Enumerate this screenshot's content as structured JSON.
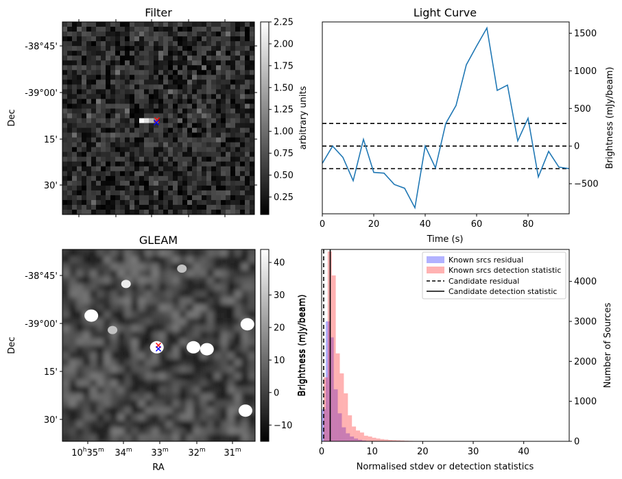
{
  "chart_data": [
    {
      "id": "filter",
      "type": "heatmap",
      "title": "Filter",
      "xlabel": "",
      "ylabel": "Dec",
      "yticks": [
        "-38°45'",
        "-39°00'",
        "15'",
        "30'"
      ],
      "colorbar": {
        "label": "arbitrary units",
        "range": [
          0.05,
          2.25
        ],
        "ticks": [
          "0.25",
          "0.50",
          "0.75",
          "1.00",
          "1.25",
          "1.50",
          "1.75",
          "2.00",
          "2.25"
        ]
      },
      "grid_size": 40,
      "bright_cells": [
        [
          16,
          20,
          2.25
        ],
        [
          17,
          20,
          2.0
        ],
        [
          18,
          20,
          1.6
        ],
        [
          19,
          20,
          1.2
        ]
      ],
      "markers": [
        {
          "label": "red",
          "color": "#ff0000",
          "symbol": "x"
        },
        {
          "label": "blue",
          "color": "#0000ff",
          "symbol": "x"
        }
      ]
    },
    {
      "id": "gleam",
      "type": "heatmap",
      "title": "GLEAM",
      "xlabel": "RA",
      "ylabel": "Dec",
      "xticks": [
        {
          "h": "10",
          "hs": "h",
          "m": "35",
          "ms": "m"
        },
        {
          "m": "34",
          "ms": "m"
        },
        {
          "m": "33",
          "ms": "m"
        },
        {
          "m": "32",
          "ms": "m"
        },
        {
          "m": "31",
          "ms": "m"
        }
      ],
      "yticks": [
        "-38°45'",
        "-39°00'",
        "15'",
        "30'"
      ],
      "colorbar": {
        "label": "Brightness (mJy/beam)",
        "range": [
          -15,
          44
        ],
        "ticks": [
          "−10",
          "0",
          "10",
          "20",
          "30",
          "40"
        ]
      },
      "sources": [
        {
          "ra_frac": 0.15,
          "dec_frac": 0.345,
          "brightness": 44
        },
        {
          "ra_frac": 0.33,
          "dec_frac": 0.18,
          "brightness": 40
        },
        {
          "ra_frac": 0.26,
          "dec_frac": 0.42,
          "brightness": 30
        },
        {
          "ra_frac": 0.49,
          "dec_frac": 0.51,
          "brightness": 44
        },
        {
          "ra_frac": 0.68,
          "dec_frac": 0.51,
          "brightness": 44
        },
        {
          "ra_frac": 0.75,
          "dec_frac": 0.52,
          "brightness": 44
        },
        {
          "ra_frac": 0.96,
          "dec_frac": 0.39,
          "brightness": 44
        },
        {
          "ra_frac": 0.95,
          "dec_frac": 0.84,
          "brightness": 44
        },
        {
          "ra_frac": 0.62,
          "dec_frac": 0.1,
          "brightness": 30
        }
      ],
      "markers": [
        {
          "label": "red",
          "color": "#ff0000",
          "symbol": "x"
        },
        {
          "label": "blue",
          "color": "#0000ff",
          "symbol": "x"
        }
      ]
    },
    {
      "id": "lightcurve",
      "type": "line",
      "title": "Light Curve",
      "xlabel": "Time (s)",
      "ylabel": "Brightness (mJy/beam)",
      "xlim": [
        0,
        96
      ],
      "ylim": [
        -900,
        1650
      ],
      "xticks": [
        0,
        20,
        40,
        60,
        80
      ],
      "yticks": [
        -500,
        0,
        500,
        1000,
        1500
      ],
      "x": [
        0,
        4,
        8,
        12,
        16,
        20,
        24,
        28,
        32,
        36,
        40,
        44,
        48,
        52,
        56,
        60,
        64,
        68,
        72,
        76,
        80,
        84,
        88,
        92,
        96
      ],
      "y": [
        -230,
        0,
        -150,
        -460,
        90,
        -350,
        -360,
        -510,
        -560,
        -820,
        0,
        -290,
        300,
        540,
        1080,
        1330,
        1570,
        740,
        810,
        70,
        370,
        -410,
        -70,
        -280,
        -300
      ],
      "hlines": [
        {
          "y": 300,
          "style": "dashed"
        },
        {
          "y": 0,
          "style": "dashed"
        },
        {
          "y": -300,
          "style": "dashed"
        }
      ],
      "line_color": "#1f77b4"
    },
    {
      "id": "histogram",
      "type": "bar",
      "xlabel": "Normalised stdev or detection statistics",
      "ylabel_left": "Brightness (mJy/beam)",
      "ylabel_right": "Number of Sources",
      "xlim": [
        0,
        49
      ],
      "ylim": [
        0,
        4800
      ],
      "xticks": [
        0,
        10,
        20,
        30,
        40
      ],
      "yticks": [
        0,
        1000,
        2000,
        3000,
        4000
      ],
      "bin_width": 0.8,
      "series": [
        {
          "name": "Known srcs residual",
          "color": "#0000ff",
          "alpha": 0.3,
          "x_start": 0,
          "values": [
            800,
            3000,
            2600,
            1300,
            700,
            350,
            200,
            120,
            70,
            40,
            20,
            10
          ]
        },
        {
          "name": "Known srcs detection statistic",
          "color": "#ff0000",
          "alpha": 0.3,
          "x_start": 0.4,
          "values": [
            1600,
            4750,
            4150,
            2200,
            1700,
            1200,
            650,
            370,
            270,
            220,
            140,
            120,
            90,
            70,
            55,
            45,
            35,
            30,
            25,
            20,
            15,
            12,
            10,
            9,
            8,
            7,
            6,
            5,
            5,
            4,
            4,
            3,
            3,
            3,
            2,
            2,
            2,
            2,
            2,
            1,
            1,
            1,
            1,
            1,
            1,
            1,
            1,
            1,
            1,
            1,
            1,
            1,
            1,
            1,
            1,
            1,
            1,
            1,
            1,
            1
          ]
        }
      ],
      "vlines": [
        {
          "name": "Candidate residual",
          "x": 0.4,
          "style": "dashed"
        },
        {
          "name": "Candidate detection statistic",
          "x": 1.7,
          "style": "solid"
        }
      ],
      "legend_position": "top-right"
    }
  ]
}
